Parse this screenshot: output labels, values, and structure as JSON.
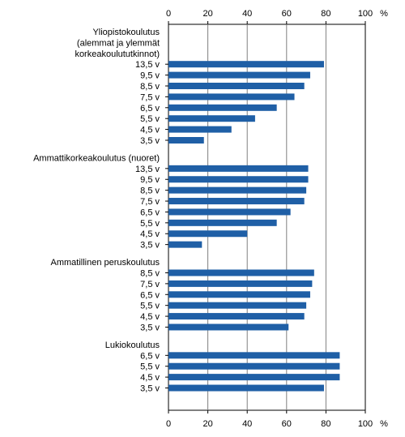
{
  "chart_data": {
    "type": "bar",
    "orientation": "horizontal",
    "xlim": [
      0,
      100
    ],
    "xticks": [
      "0",
      "20",
      "40",
      "60",
      "80",
      "100"
    ],
    "unit_label": "%",
    "grid": "vertical",
    "bar_color": "#1f5fa6",
    "groups": [
      {
        "title_lines": [
          "Yliopistokoulutus",
          "(alemmat ja ylemmät",
          "korkeakoulututkinnot)"
        ],
        "categories": [
          "13,5 v",
          "9,5 v",
          "8,5 v",
          "7,5 v",
          "6,5 v",
          "5,5 v",
          "4,5 v",
          "3,5 v"
        ],
        "values": [
          79,
          72,
          69,
          64,
          55,
          44,
          32,
          18
        ]
      },
      {
        "title_lines": [
          "Ammattikorkeakoulutus (nuoret)"
        ],
        "categories": [
          "13,5 v",
          "9,5 v",
          "8,5 v",
          "7,5 v",
          "6,5 v",
          "5,5 v",
          "4,5 v",
          "3,5 v"
        ],
        "values": [
          71,
          71,
          70,
          69,
          62,
          55,
          40,
          17
        ]
      },
      {
        "title_lines": [
          "Ammatillinen peruskoulutus"
        ],
        "categories": [
          "8,5 v",
          "7,5 v",
          "6,5 v",
          "5,5 v",
          "4,5 v",
          "3,5 v"
        ],
        "values": [
          74,
          73,
          72,
          70,
          69,
          61
        ]
      },
      {
        "title_lines": [
          "Lukiokoulutus"
        ],
        "categories": [
          "6,5 v",
          "5,5 v",
          "4,5 v",
          "3,5 v"
        ],
        "values": [
          87,
          87,
          87,
          79
        ]
      }
    ]
  }
}
